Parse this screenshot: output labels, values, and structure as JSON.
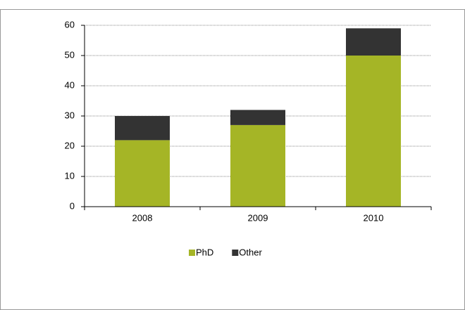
{
  "chart_data": {
    "type": "stacked-bar",
    "categories": [
      "2008",
      "2009",
      "2010"
    ],
    "series": [
      {
        "name": "PhD",
        "color": "#a5b526",
        "values": [
          22,
          27,
          50
        ]
      },
      {
        "name": "Other",
        "color": "#333333",
        "values": [
          8,
          5,
          9
        ]
      }
    ],
    "ylim": [
      0,
      60
    ],
    "yticks": [
      0,
      10,
      20,
      30,
      40,
      50,
      60
    ],
    "grid": true,
    "legend": "bottom"
  }
}
